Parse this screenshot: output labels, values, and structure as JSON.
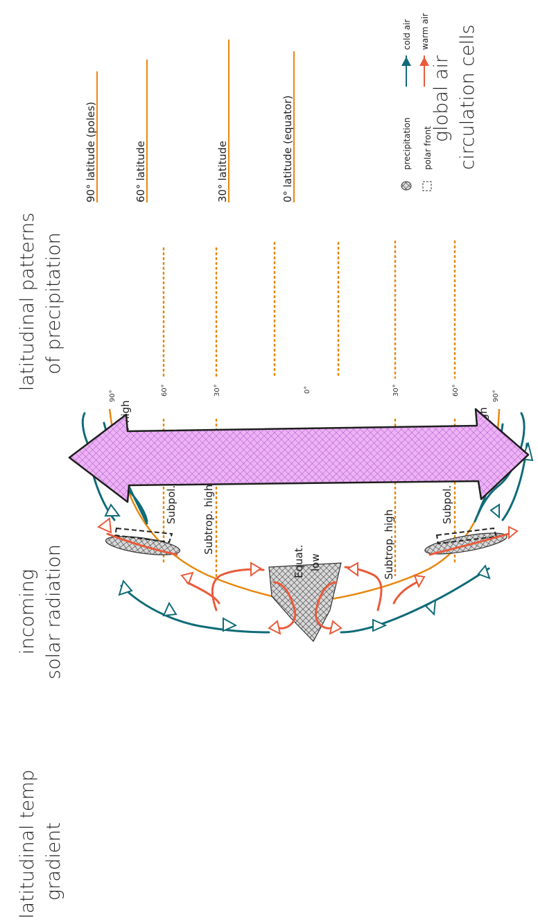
{
  "headings": {
    "temp_gradient": [
      "latitudinal temp",
      "gradient"
    ],
    "solar_radiation": [
      "incoming",
      "solar radiation"
    ],
    "precip_patterns": [
      "latitudinal patterns",
      "of precipitation"
    ],
    "circulation_cells": [
      "global air",
      "circulation cells"
    ]
  },
  "latitude_lines": {
    "poles": "90° latitude (poles)",
    "sixty": "60° latitude",
    "thirty": "30° latitude",
    "equator": "0° latitude (equator)"
  },
  "legend": {
    "precipitation": "precipitation",
    "polar_front": "polar front",
    "cold_air": "cold air",
    "warm_air": "warm air"
  },
  "pressure_zones": {
    "polar_high_north": "Polar high",
    "subpolar_low_north": "Subpol. low",
    "subtropical_high_north": "Subtrop. high",
    "equatorial_low": [
      "Equat.",
      "low"
    ],
    "subtropical_high_south": "Subtrop. high",
    "subpolar_low_south": "Subpol. low",
    "polar_high_south": "Polar high"
  },
  "degree_ticks": {
    "n90": "90°",
    "n60": "60°",
    "n30": "30°",
    "eq": "0°",
    "s30": "30°",
    "s60": "60°",
    "s90": "90°"
  },
  "colors": {
    "cold_air": "#0f6b77",
    "warm_air": "#ea5a3a",
    "latitude_orange": "#e8870e",
    "earth_orange": "#e8870e",
    "gradient_arrow_fill": "#e7a6f2",
    "precip_fill": "#555555"
  }
}
